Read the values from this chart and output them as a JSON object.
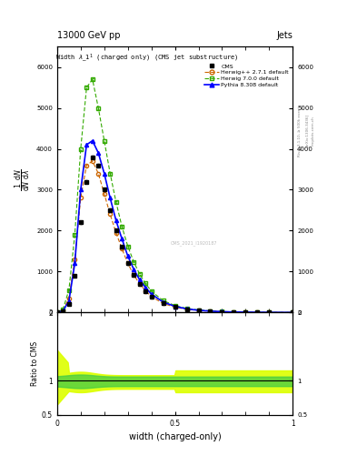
{
  "header_left": "13000 GeV pp",
  "header_right": "Jets",
  "xlabel": "width (charged-only)",
  "ylabel_ratio": "Ratio to CMS",
  "watermark": "CMS_2021_I1920187",
  "cms_color": "#000000",
  "herwig271_color": "#cc6600",
  "herwig700_color": "#33aa00",
  "pythia_color": "#0000ff",
  "x_vals": [
    0.0,
    0.025,
    0.05,
    0.075,
    0.1,
    0.125,
    0.15,
    0.175,
    0.2,
    0.225,
    0.25,
    0.275,
    0.3,
    0.325,
    0.35,
    0.375,
    0.4,
    0.45,
    0.5,
    0.55,
    0.6,
    0.65,
    0.7,
    0.75,
    0.8,
    0.85,
    0.9,
    1.0
  ],
  "cms_y": [
    0,
    30,
    200,
    900,
    2200,
    3200,
    3800,
    3600,
    3000,
    2500,
    2000,
    1600,
    1200,
    920,
    700,
    530,
    390,
    220,
    130,
    75,
    45,
    28,
    16,
    10,
    6,
    4,
    2,
    0
  ],
  "h271_y": [
    0,
    50,
    350,
    1300,
    2800,
    3600,
    3700,
    3400,
    2900,
    2400,
    1950,
    1560,
    1200,
    920,
    700,
    530,
    390,
    220,
    130,
    78,
    48,
    30,
    18,
    11,
    7,
    4,
    2,
    0
  ],
  "h700_y": [
    0,
    80,
    550,
    1900,
    4000,
    5500,
    5700,
    5000,
    4200,
    3400,
    2700,
    2100,
    1620,
    1240,
    940,
    710,
    520,
    290,
    170,
    100,
    62,
    38,
    23,
    14,
    9,
    5,
    3,
    0
  ],
  "pythia_y": [
    0,
    40,
    280,
    1200,
    3000,
    4100,
    4200,
    3900,
    3400,
    2800,
    2250,
    1800,
    1380,
    1060,
    800,
    610,
    450,
    255,
    150,
    88,
    54,
    33,
    20,
    12,
    8,
    5,
    3,
    0
  ],
  "ylim_main": [
    0,
    6500
  ],
  "ylim_ratio": [
    0.5,
    2.0
  ],
  "background_color": "#ffffff",
  "ratio_yellow_color": "#ddff00",
  "ratio_green_color": "#44cc44"
}
